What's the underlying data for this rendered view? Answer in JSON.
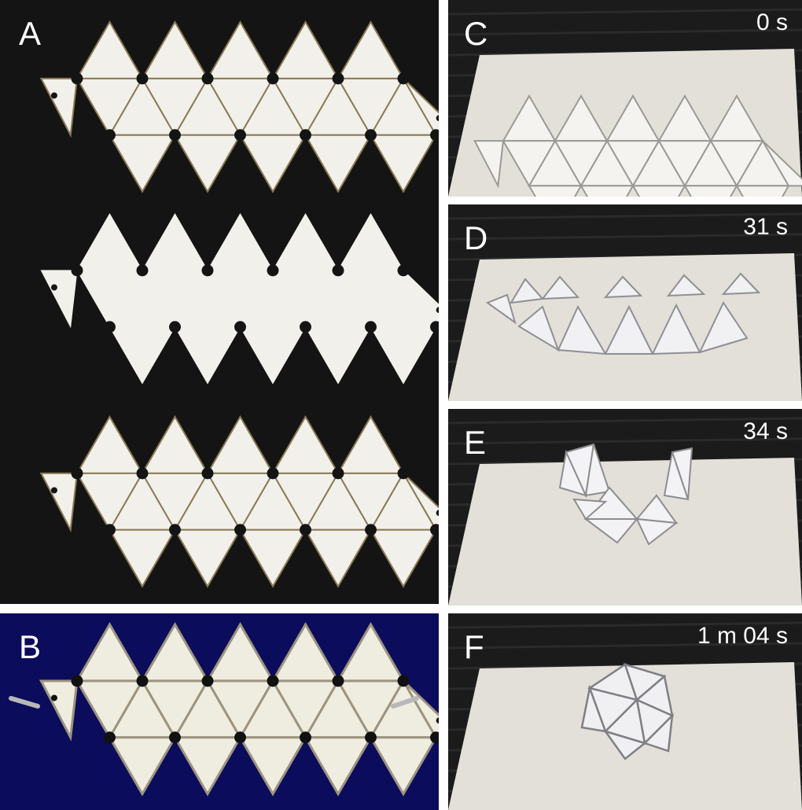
{
  "panels": {
    "a": {
      "label": "A"
    },
    "b": {
      "label": "B"
    },
    "c": {
      "label": "C",
      "time": "0 s"
    },
    "d": {
      "label": "D",
      "time": "31 s"
    },
    "e": {
      "label": "E",
      "time": "34 s"
    },
    "f": {
      "label": "F",
      "time": "1 m 04 s"
    }
  },
  "colors": {
    "dark_bg": "#141414",
    "navy_bg": "#0c0c5c",
    "photo_bg": "#1b1b1b",
    "platform": "#e2e0d8",
    "sheet": "#f2f0ea"
  }
}
